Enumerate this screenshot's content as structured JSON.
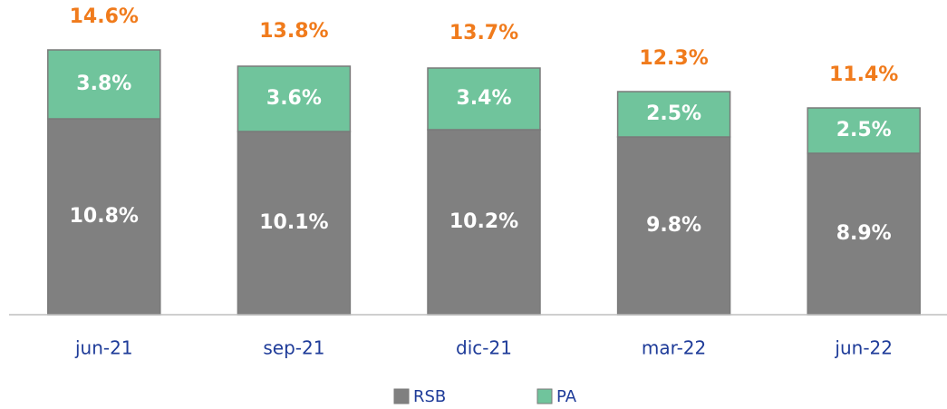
{
  "chart_data": {
    "type": "stacked_bar",
    "categories": [
      "jun-21",
      "sep-21",
      "dic-21",
      "mar-22",
      "jun-22"
    ],
    "series": [
      {
        "name": "RSB",
        "color": "#808080",
        "values": [
          10.8,
          10.1,
          10.2,
          9.8,
          8.9
        ],
        "value_labels": [
          "10.8%",
          "10.1%",
          "10.2%",
          "9.8%",
          "8.9%"
        ]
      },
      {
        "name": "PA",
        "color": "#70c49c",
        "values": [
          3.8,
          3.6,
          3.4,
          2.5,
          2.5
        ],
        "value_labels": [
          "3.8%",
          "3.6%",
          "3.4%",
          "2.5%",
          "2.5%"
        ]
      }
    ],
    "totals": [
      14.6,
      13.8,
      13.7,
      12.3,
      11.4
    ],
    "total_labels": [
      "14.6%",
      "13.8%",
      "13.7%",
      "12.3%",
      "11.4%"
    ],
    "ylim": [
      0,
      15
    ]
  }
}
